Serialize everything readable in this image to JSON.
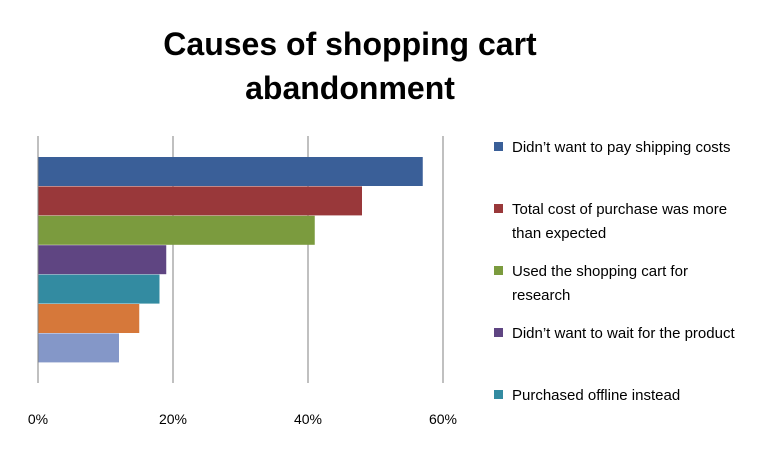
{
  "chart_data": {
    "type": "bar",
    "orientation": "horizontal",
    "title": "Causes of shopping cart abandonment",
    "xlabel": "",
    "ylabel": "",
    "xlim": [
      0,
      60
    ],
    "x_ticks": [
      "0%",
      "20%",
      "40%",
      "60%"
    ],
    "grid": true,
    "legend_position": "right",
    "categories": [
      "Didn’t want to pay shipping costs",
      "Total cost of purchase was more than expected",
      "Used the  shopping cart for research",
      "Didn’t want to wait for the product",
      "Purchased offline instead",
      "",
      ""
    ],
    "values": [
      57,
      48,
      41,
      19,
      18,
      15,
      12
    ],
    "colors": [
      "#3a5f98",
      "#99383a",
      "#7b9b3e",
      "#5f4582",
      "#338ba1",
      "#d6783a",
      "#8497c8"
    ],
    "legend": [
      {
        "label": "Didn’t want to pay shipping costs",
        "color": "#3a5f98"
      },
      {
        "label": "Total cost of purchase was more than expected",
        "color": "#99383a"
      },
      {
        "label": "Used the  shopping cart for research",
        "color": "#7b9b3e"
      },
      {
        "label": "Didn’t want to wait for the product",
        "color": "#5f4582"
      },
      {
        "label": "Purchased offline instead",
        "color": "#338ba1"
      }
    ]
  }
}
